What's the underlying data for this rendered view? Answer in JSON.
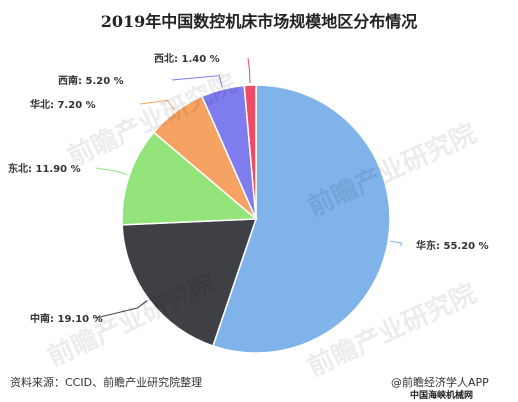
{
  "chart_data": {
    "type": "pie",
    "title": "2019年中国数控机床市场规模地区分布情况",
    "slices": [
      {
        "label": "华东",
        "value": 55.2,
        "text": "华东: 55.20 %",
        "color": "#7fb3ea"
      },
      {
        "label": "中南",
        "value": 19.1,
        "text": "中南: 19.10 %",
        "color": "#3f3f46"
      },
      {
        "label": "东北",
        "value": 11.9,
        "text": "东北: 11.90 %",
        "color": "#94e47c"
      },
      {
        "label": "华北",
        "value": 7.2,
        "text": "华北: 7.20 %",
        "color": "#f6a262"
      },
      {
        "label": "西南",
        "value": 5.2,
        "text": "西南: 5.20 %",
        "color": "#7f7cf0"
      },
      {
        "label": "西北",
        "value": 1.4,
        "text": "西北: 1.40 %",
        "color": "#ee4b67"
      }
    ]
  },
  "footer": {
    "source": "资料来源：CCID、前瞻产业研究院整理",
    "brand_icon": "at-sign-icon",
    "brand": "@前瞻经济学人APP",
    "stamp": "中国海峡机械网"
  },
  "watermark": "前瞻产业研究院"
}
